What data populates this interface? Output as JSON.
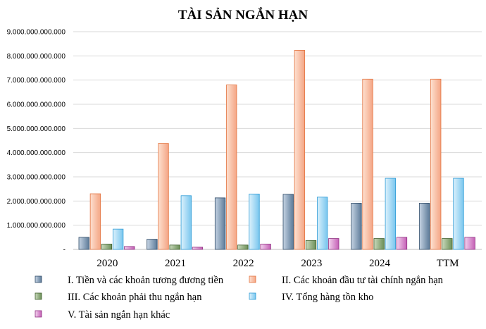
{
  "chart_data": {
    "type": "bar",
    "title": "TÀI SẢN NGẮN HẠN",
    "categories": [
      "2020",
      "2021",
      "2022",
      "2023",
      "2024",
      "TTM"
    ],
    "ylim": [
      0,
      9000000000000
    ],
    "yticks": [
      {
        "value": 0,
        "label": "-"
      },
      {
        "value": 1000000000000,
        "label": "1.000.000.000.000"
      },
      {
        "value": 2000000000000,
        "label": "2.000.000.000.000"
      },
      {
        "value": 3000000000000,
        "label": "3.000.000.000.000"
      },
      {
        "value": 4000000000000,
        "label": "4.000.000.000.000"
      },
      {
        "value": 5000000000000,
        "label": "5.000.000.000.000"
      },
      {
        "value": 6000000000000,
        "label": "6.000.000.000.000"
      },
      {
        "value": 7000000000000,
        "label": "7.000.000.000.000"
      },
      {
        "value": 8000000000000,
        "label": "8.000.000.000.000"
      },
      {
        "value": 9000000000000,
        "label": "9.000.000.000.000"
      }
    ],
    "grid": true,
    "legend_position": "bottom",
    "series": [
      {
        "name": "I. Tiền và các khoản tương đương tiền",
        "color_light": "#c5d3e3",
        "color_dark": "#5d7b99",
        "stroke": "#2f4a66",
        "values": [
          500000000000,
          420000000000,
          2130000000000,
          2280000000000,
          1910000000000,
          1910000000000
        ]
      },
      {
        "name": "II. Các khoản đầu tư tài chính ngắn hạn",
        "color_light": "#fde0d0",
        "color_dark": "#f4a584",
        "stroke": "#e3733f",
        "values": [
          2300000000000,
          4380000000000,
          6800000000000,
          8230000000000,
          7040000000000,
          7040000000000
        ]
      },
      {
        "name": "III. Các khoản phải thu ngắn hạn",
        "color_light": "#c9d9bc",
        "color_dark": "#6b8f57",
        "stroke": "#3f5f2e",
        "values": [
          220000000000,
          180000000000,
          180000000000,
          370000000000,
          450000000000,
          450000000000
        ]
      },
      {
        "name": "IV. Tổng hàng tồn kho",
        "color_light": "#dcf1fc",
        "color_dark": "#79c6ee",
        "stroke": "#2e9bd6",
        "values": [
          840000000000,
          2220000000000,
          2290000000000,
          2160000000000,
          2940000000000,
          2940000000000
        ]
      },
      {
        "name": "V. Tài sản ngắn hạn khác",
        "color_light": "#f3d2ee",
        "color_dark": "#c45fb5",
        "stroke": "#8e2f80",
        "values": [
          120000000000,
          90000000000,
          220000000000,
          450000000000,
          500000000000,
          500000000000
        ]
      }
    ]
  }
}
